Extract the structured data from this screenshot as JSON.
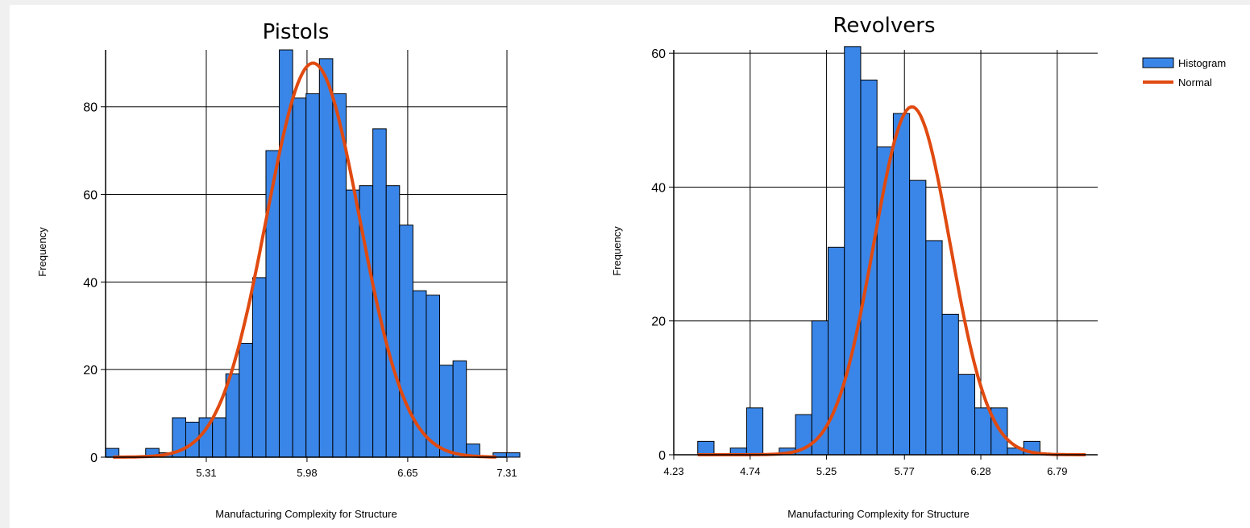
{
  "legend": {
    "items": [
      {
        "label": "Histogram",
        "swatch": "bar"
      },
      {
        "label": "Normal",
        "swatch": "line"
      }
    ]
  },
  "colors": {
    "bar_fill": "#3a86e8",
    "bar_stroke": "#000000",
    "curve": "#e04a10",
    "grid": "#000000",
    "background": "#ffffff"
  },
  "chart_data": [
    {
      "type": "bar",
      "title": "Pistols",
      "xlabel": "Manufacturing Complexity for Structure",
      "ylabel": "Frequency",
      "x_ticks": [
        "5.31",
        "5.98",
        "6.65",
        "7.31"
      ],
      "y_ticks": [
        "0",
        "20",
        "40",
        "60",
        "80"
      ],
      "xlim": [
        4.64,
        7.31
      ],
      "ylim": [
        0,
        93
      ],
      "grid": true,
      "legend_position": "none",
      "bin_width": 0.0889,
      "bins_start": 4.64,
      "series": [
        {
          "name": "Histogram",
          "values": [
            2,
            0,
            0,
            2,
            1,
            9,
            8,
            9,
            9,
            19,
            26,
            41,
            70,
            93,
            82,
            83,
            91,
            83,
            61,
            62,
            75,
            62,
            53,
            38,
            37,
            21,
            22,
            3,
            0,
            1,
            1
          ]
        },
        {
          "name": "Normal",
          "kind": "curve",
          "mean": 6.02,
          "peak": 90,
          "sd": 0.31,
          "x_range": [
            4.69,
            7.24
          ]
        }
      ]
    },
    {
      "type": "bar",
      "title": "Revolvers",
      "xlabel": "Manufacturing Complexity for Structure",
      "ylabel": "Frequency",
      "x_ticks": [
        "4.23",
        "4.74",
        "5.25",
        "5.77",
        "6.28",
        "6.79"
      ],
      "y_ticks": [
        "0",
        "20",
        "40",
        "60"
      ],
      "xlim": [
        4.23,
        7.06
      ],
      "ylim": [
        0,
        60.5
      ],
      "grid": true,
      "legend_position": "top-right",
      "bin_width": 0.1088,
      "bins_start": 4.39,
      "series": [
        {
          "name": "Histogram",
          "values": [
            2,
            0,
            1,
            7,
            0,
            1,
            6,
            20,
            31,
            61,
            56,
            46,
            51,
            41,
            32,
            21,
            12,
            7,
            7,
            1,
            2
          ]
        },
        {
          "name": "Normal",
          "kind": "curve",
          "mean": 5.82,
          "peak": 52,
          "sd": 0.255,
          "x_range": [
            4.39,
            6.98
          ]
        }
      ]
    }
  ]
}
